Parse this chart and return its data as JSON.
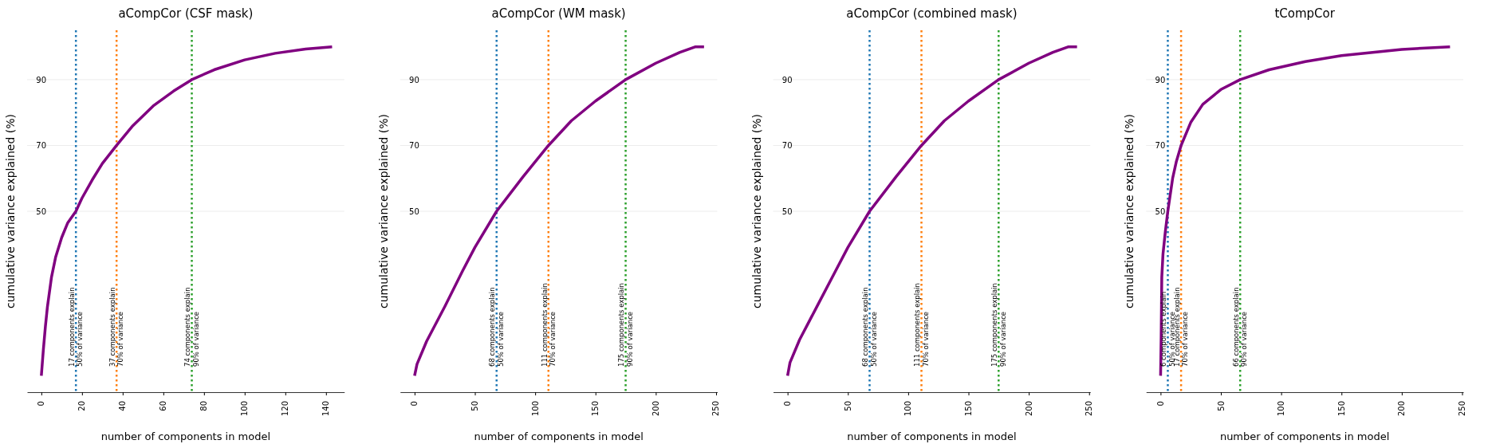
{
  "chart_data": [
    {
      "type": "line",
      "title": "aCompCor (CSF mask)",
      "xlabel": "number of components in model",
      "ylabel": "cumulative variance explained (%)",
      "xlim": [
        -7,
        149
      ],
      "xticks": [
        0,
        20,
        40,
        60,
        80,
        100,
        120,
        140
      ],
      "ylim": [
        -5,
        105
      ],
      "yticks": [
        50,
        70,
        90
      ],
      "grid": "y",
      "series": [
        {
          "color": "#800080",
          "x": [
            0,
            1,
            2,
            3,
            5,
            7,
            10,
            13,
            17,
            20,
            25,
            30,
            37,
            45,
            55,
            65,
            74,
            85,
            100,
            115,
            130,
            143
          ],
          "values": [
            0,
            8,
            15,
            21,
            30,
            36,
            42,
            46.5,
            50,
            54,
            59.5,
            64.5,
            70,
            76,
            82,
            86.5,
            90,
            93,
            96,
            98,
            99.3,
            100
          ]
        }
      ],
      "ref_lines": [
        {
          "axis": "x",
          "value": 17,
          "label": "17 components explain\n50% of variance",
          "color": "#1f77b4",
          "line_style": "dotted"
        },
        {
          "axis": "x",
          "value": 37,
          "label": "37 components explain\n70% of variance",
          "color": "#ff7f0e",
          "line_style": "dotted"
        },
        {
          "axis": "x",
          "value": 74,
          "label": "74 components explain\n90% of variance",
          "color": "#2ca02c",
          "line_style": "dotted"
        }
      ]
    },
    {
      "type": "line",
      "title": "aCompCor (WM mask)",
      "xlabel": "number of components in model",
      "ylabel": "cumulative variance explained (%)",
      "xlim": [
        -12,
        251
      ],
      "xticks": [
        0,
        50,
        100,
        150,
        200,
        250
      ],
      "ylim": [
        -5,
        105
      ],
      "yticks": [
        50,
        70,
        90
      ],
      "grid": "y",
      "series": [
        {
          "color": "#800080",
          "x": [
            0,
            2,
            10,
            25,
            40,
            50,
            68,
            90,
            111,
            130,
            150,
            175,
            200,
            220,
            233,
            240
          ],
          "values": [
            0,
            3.5,
            10.5,
            21,
            32,
            39,
            50,
            60.5,
            70,
            77.5,
            83.5,
            90,
            95,
            98.3,
            100,
            100
          ]
        }
      ],
      "ref_lines": [
        {
          "axis": "x",
          "value": 68,
          "label": "68 components explain\n50% of variance",
          "color": "#1f77b4",
          "line_style": "dotted"
        },
        {
          "axis": "x",
          "value": 111,
          "label": "111 components explain\n70% of variance",
          "color": "#ff7f0e",
          "line_style": "dotted"
        },
        {
          "axis": "x",
          "value": 175,
          "label": "175 components explain\n90% of variance",
          "color": "#2ca02c",
          "line_style": "dotted"
        }
      ]
    },
    {
      "type": "line",
      "title": "aCompCor (combined mask)",
      "xlabel": "number of components in model",
      "ylabel": "cumulative variance explained (%)",
      "xlim": [
        -12,
        251
      ],
      "xticks": [
        0,
        50,
        100,
        150,
        200,
        250
      ],
      "ylim": [
        -5,
        105
      ],
      "yticks": [
        50,
        70,
        90
      ],
      "grid": "y",
      "series": [
        {
          "color": "#800080",
          "x": [
            0,
            2,
            10,
            25,
            40,
            50,
            68,
            90,
            111,
            130,
            150,
            175,
            200,
            220,
            233,
            240
          ],
          "values": [
            0,
            4,
            11,
            21.5,
            32,
            39,
            50,
            60.5,
            70,
            77.5,
            83.5,
            90,
            95,
            98.3,
            100,
            100
          ]
        }
      ],
      "ref_lines": [
        {
          "axis": "x",
          "value": 68,
          "label": "68 components explain\n50% of variance",
          "color": "#1f77b4",
          "line_style": "dotted"
        },
        {
          "axis": "x",
          "value": 111,
          "label": "111 components explain\n70% of variance",
          "color": "#ff7f0e",
          "line_style": "dotted"
        },
        {
          "axis": "x",
          "value": 175,
          "label": "175 components explain\n90% of variance",
          "color": "#2ca02c",
          "line_style": "dotted"
        }
      ]
    },
    {
      "type": "line",
      "title": "tCompCor",
      "xlabel": "number of components in model",
      "ylabel": "cumulative variance explained (%)",
      "xlim": [
        -12,
        251
      ],
      "xticks": [
        0,
        50,
        100,
        150,
        200,
        250
      ],
      "ylim": [
        -5,
        105
      ],
      "yticks": [
        50,
        70,
        90
      ],
      "grid": "y",
      "series": [
        {
          "color": "#800080",
          "x": [
            0,
            0.5,
            1,
            2,
            4,
            6,
            10,
            13,
            17,
            25,
            35,
            50,
            66,
            90,
            120,
            150,
            200,
            240
          ],
          "values": [
            0,
            12,
            30,
            37,
            44,
            50,
            60,
            65,
            70,
            77,
            82.5,
            87,
            90,
            93,
            95.5,
            97.3,
            99.2,
            100
          ]
        }
      ],
      "ref_lines": [
        {
          "axis": "x",
          "value": 6,
          "label": "6 components explain\n50% of variance",
          "color": "#1f77b4",
          "line_style": "dotted"
        },
        {
          "axis": "x",
          "value": 17,
          "label": "17 components explain\n70% of variance",
          "color": "#ff7f0e",
          "line_style": "dotted"
        },
        {
          "axis": "x",
          "value": 66,
          "label": "66 components explain\n90% of variance",
          "color": "#2ca02c",
          "line_style": "dotted"
        }
      ]
    }
  ]
}
